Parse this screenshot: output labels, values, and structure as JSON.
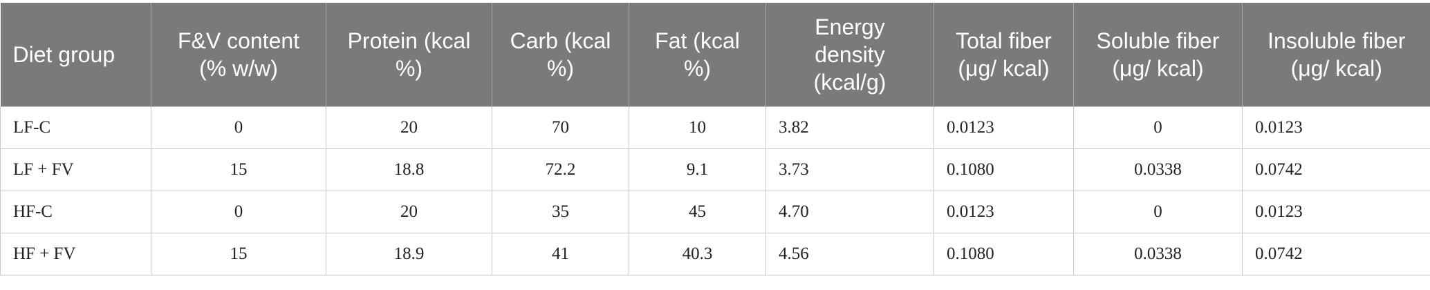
{
  "headers": [
    "Diet group",
    "F&V content (% w/w)",
    "Protein (kcal %)",
    "Carb (kcal %)",
    "Fat (kcal %)",
    "Energy density (kcal/g)",
    "Total fiber (μg/ kcal)",
    "Soluble fiber (μg/ kcal)",
    "Insoluble fiber (μg/ kcal)"
  ],
  "rows": [
    [
      "LF-C",
      "0",
      "20",
      "70",
      "10",
      "3.82",
      "0.0123",
      "0",
      "0.0123"
    ],
    [
      "LF + FV",
      "15",
      "18.8",
      "72.2",
      "9.1",
      "3.73",
      "0.1080",
      "0.0338",
      "0.0742"
    ],
    [
      "HF-C",
      "0",
      "20",
      "35",
      "45",
      "4.70",
      "0.0123",
      "0",
      "0.0123"
    ],
    [
      "HF + FV",
      "15",
      "18.9",
      "41",
      "40.3",
      "4.56",
      "0.1080",
      "0.0338",
      "0.0742"
    ]
  ]
}
